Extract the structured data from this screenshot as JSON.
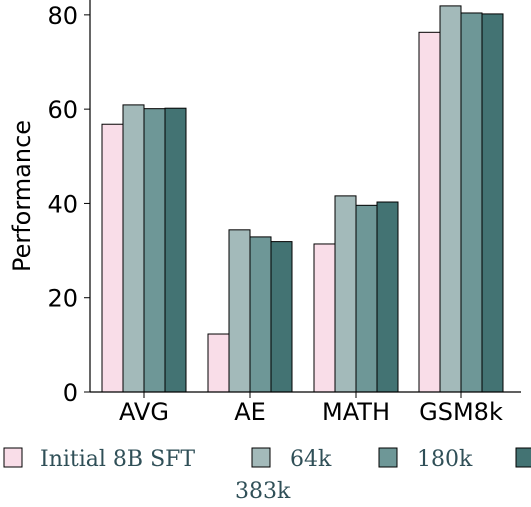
{
  "chart_data": {
    "type": "bar",
    "categories": [
      "AVG",
      "AE",
      "MATH",
      "GSM8k"
    ],
    "series": [
      {
        "name": "Initial 8B SFT",
        "values": [
          56.8,
          12.3,
          31.4,
          76.3
        ],
        "color": "#f9dde8"
      },
      {
        "name": "64k",
        "values": [
          60.9,
          34.4,
          41.6,
          81.9
        ],
        "color": "#a3baba"
      },
      {
        "name": "180k",
        "values": [
          60.1,
          32.9,
          39.6,
          80.4
        ],
        "color": "#6e9797"
      },
      {
        "name": "383k",
        "values": [
          60.2,
          31.9,
          40.3,
          80.2
        ],
        "color": "#437373"
      }
    ],
    "ylabel": "Performance",
    "ylim": [
      0,
      84
    ],
    "yticks": [
      0,
      20,
      40,
      60,
      80
    ],
    "grid": false,
    "legend_position": "bottom"
  }
}
